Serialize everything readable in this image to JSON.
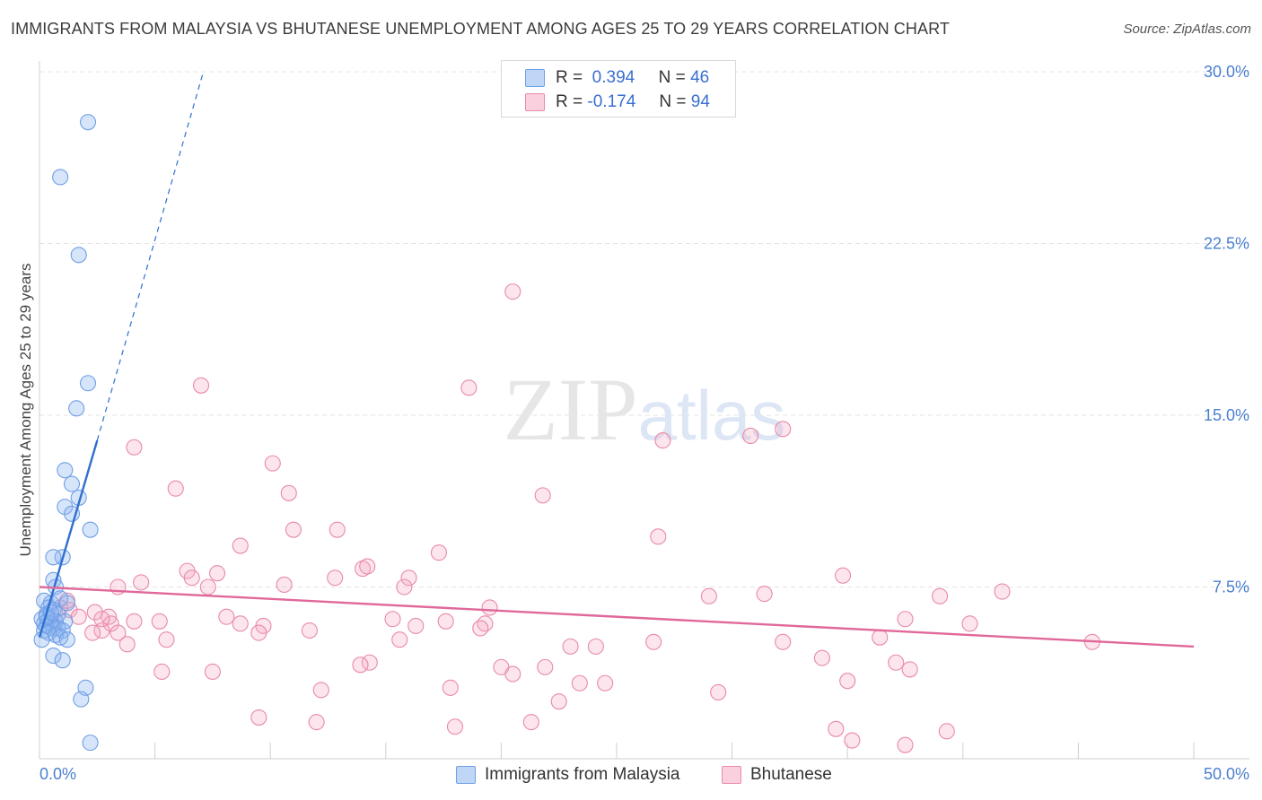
{
  "header": {
    "title": "IMMIGRANTS FROM MALAYSIA VS BHUTANESE UNEMPLOYMENT AMONG AGES 25 TO 29 YEARS CORRELATION CHART",
    "source": "Source: ZipAtlas.com"
  },
  "legend": {
    "r_label": "R =",
    "n_label": "N =",
    "series1": {
      "r": "0.394",
      "n": "46"
    },
    "series2": {
      "r": "-0.174",
      "n": "94"
    }
  },
  "colors": {
    "blue": "#6f9fe6",
    "blue_fill": "rgba(140,180,240,0.35)",
    "blue_line": "#2f6fd0",
    "pink": "#e88aa8",
    "pink_fill": "rgba(245,170,195,0.30)",
    "pink_line": "#e0689a"
  },
  "chart_data": {
    "type": "scatter",
    "title": "IMMIGRANTS FROM MALAYSIA VS BHUTANESE UNEMPLOYMENT AMONG AGES 25 TO 29 YEARS CORRELATION CHART",
    "xlabel": "",
    "ylabel": "Unemployment Among Ages 25 to 29 years",
    "xlim": [
      0,
      50
    ],
    "ylim": [
      0,
      30
    ],
    "x_tick_labels": [
      "0.0%",
      "50.0%"
    ],
    "y_ticks": [
      7.5,
      15.0,
      22.5,
      30.0
    ],
    "y_tick_labels": [
      "7.5%",
      "15.0%",
      "22.5%",
      "30.0%"
    ],
    "watermark": "ZIPatlas",
    "series": [
      {
        "name": "Immigrants from Malaysia",
        "color": "#6f9fe6",
        "trend": {
          "x": [
            0.0,
            2.5
          ],
          "y": [
            5.3,
            13.9
          ],
          "extended_to": [
            7.1,
            30.0
          ]
        },
        "points": [
          [
            2.1,
            27.8
          ],
          [
            0.9,
            25.4
          ],
          [
            1.7,
            22.0
          ],
          [
            2.1,
            16.4
          ],
          [
            1.6,
            15.3
          ],
          [
            1.1,
            12.6
          ],
          [
            1.4,
            12.0
          ],
          [
            1.7,
            11.4
          ],
          [
            1.1,
            11.0
          ],
          [
            1.4,
            10.7
          ],
          [
            2.2,
            10.0
          ],
          [
            1.0,
            8.8
          ],
          [
            0.6,
            8.8
          ],
          [
            0.6,
            7.8
          ],
          [
            0.7,
            7.5
          ],
          [
            0.2,
            6.9
          ],
          [
            0.5,
            6.8
          ],
          [
            0.9,
            7.0
          ],
          [
            1.2,
            6.8
          ],
          [
            0.4,
            6.6
          ],
          [
            0.6,
            6.5
          ],
          [
            0.3,
            6.3
          ],
          [
            0.8,
            6.3
          ],
          [
            0.1,
            6.1
          ],
          [
            0.4,
            6.1
          ],
          [
            0.7,
            6.0
          ],
          [
            1.1,
            6.0
          ],
          [
            0.2,
            5.9
          ],
          [
            0.5,
            5.9
          ],
          [
            0.3,
            5.8
          ],
          [
            0.6,
            5.7
          ],
          [
            0.8,
            5.7
          ],
          [
            0.2,
            5.6
          ],
          [
            1.0,
            5.6
          ],
          [
            0.4,
            5.5
          ],
          [
            0.7,
            5.4
          ],
          [
            0.9,
            5.3
          ],
          [
            0.1,
            5.2
          ],
          [
            1.2,
            5.2
          ],
          [
            0.6,
            4.5
          ],
          [
            1.0,
            4.3
          ],
          [
            2.0,
            3.1
          ],
          [
            1.8,
            2.6
          ],
          [
            2.2,
            0.7
          ],
          [
            0.3,
            6.2
          ],
          [
            0.5,
            6.4
          ]
        ]
      },
      {
        "name": "Bhutanese",
        "color": "#e88aa8",
        "trend": {
          "x": [
            0.0,
            50.0
          ],
          "y": [
            7.5,
            4.9
          ]
        },
        "points": [
          [
            20.5,
            20.4
          ],
          [
            7.0,
            16.3
          ],
          [
            18.6,
            16.2
          ],
          [
            32.2,
            14.4
          ],
          [
            30.8,
            14.1
          ],
          [
            27.0,
            13.9
          ],
          [
            4.1,
            13.6
          ],
          [
            10.1,
            12.9
          ],
          [
            5.9,
            11.8
          ],
          [
            10.8,
            11.6
          ],
          [
            21.8,
            11.5
          ],
          [
            11.0,
            10.0
          ],
          [
            12.9,
            10.0
          ],
          [
            26.8,
            9.7
          ],
          [
            8.7,
            9.3
          ],
          [
            17.3,
            9.0
          ],
          [
            14.0,
            8.3
          ],
          [
            14.2,
            8.4
          ],
          [
            6.4,
            8.2
          ],
          [
            7.7,
            8.1
          ],
          [
            34.8,
            8.0
          ],
          [
            16.0,
            7.9
          ],
          [
            12.8,
            7.9
          ],
          [
            6.6,
            7.9
          ],
          [
            4.4,
            7.7
          ],
          [
            10.6,
            7.6
          ],
          [
            7.3,
            7.5
          ],
          [
            3.4,
            7.5
          ],
          [
            15.8,
            7.5
          ],
          [
            31.4,
            7.2
          ],
          [
            29.0,
            7.1
          ],
          [
            39.0,
            7.1
          ],
          [
            41.7,
            7.3
          ],
          [
            19.5,
            6.6
          ],
          [
            2.4,
            6.4
          ],
          [
            3.0,
            6.2
          ],
          [
            8.1,
            6.2
          ],
          [
            15.3,
            6.1
          ],
          [
            5.2,
            6.0
          ],
          [
            4.1,
            6.0
          ],
          [
            3.1,
            5.9
          ],
          [
            8.7,
            5.9
          ],
          [
            17.6,
            6.0
          ],
          [
            19.3,
            5.9
          ],
          [
            9.7,
            5.8
          ],
          [
            16.3,
            5.8
          ],
          [
            11.7,
            5.6
          ],
          [
            19.1,
            5.7
          ],
          [
            37.5,
            6.1
          ],
          [
            40.3,
            5.9
          ],
          [
            9.5,
            5.5
          ],
          [
            2.7,
            5.6
          ],
          [
            3.4,
            5.5
          ],
          [
            2.3,
            5.5
          ],
          [
            5.5,
            5.2
          ],
          [
            15.6,
            5.2
          ],
          [
            26.6,
            5.1
          ],
          [
            32.2,
            5.1
          ],
          [
            36.4,
            5.3
          ],
          [
            45.6,
            5.1
          ],
          [
            3.8,
            5.0
          ],
          [
            23.0,
            4.9
          ],
          [
            24.1,
            4.9
          ],
          [
            33.9,
            4.4
          ],
          [
            37.1,
            4.2
          ],
          [
            14.3,
            4.2
          ],
          [
            13.9,
            4.1
          ],
          [
            20.0,
            4.0
          ],
          [
            21.9,
            4.0
          ],
          [
            5.3,
            3.8
          ],
          [
            7.5,
            3.8
          ],
          [
            37.7,
            3.9
          ],
          [
            20.5,
            3.7
          ],
          [
            35.0,
            3.4
          ],
          [
            24.5,
            3.3
          ],
          [
            23.4,
            3.3
          ],
          [
            12.2,
            3.0
          ],
          [
            17.8,
            3.1
          ],
          [
            29.4,
            2.9
          ],
          [
            22.5,
            2.5
          ],
          [
            9.5,
            1.8
          ],
          [
            12.0,
            1.6
          ],
          [
            18.0,
            1.4
          ],
          [
            21.3,
            1.6
          ],
          [
            34.5,
            1.3
          ],
          [
            35.2,
            0.8
          ],
          [
            39.3,
            1.2
          ],
          [
            37.5,
            0.6
          ],
          [
            2.7,
            6.1
          ],
          [
            1.3,
            6.5
          ],
          [
            1.7,
            6.2
          ],
          [
            0.9,
            6.6
          ],
          [
            1.2,
            6.9
          ],
          [
            0.7,
            6.0
          ]
        ]
      }
    ]
  }
}
